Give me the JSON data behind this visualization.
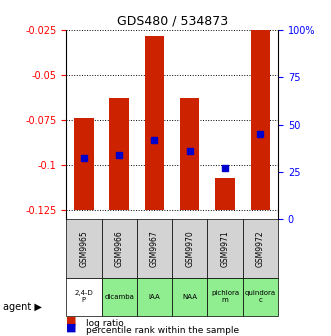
{
  "title": "GDS480 / 534873",
  "samples": [
    "GSM9965",
    "GSM9966",
    "GSM9967",
    "GSM9970",
    "GSM9971",
    "GSM9972"
  ],
  "agents": [
    "2,4-D\nP",
    "dicamba",
    "IAA",
    "NAA",
    "pichlora\nm",
    "quindora\nc"
  ],
  "agent_colors": [
    "#ffffff",
    "#90ee90",
    "#90ee90",
    "#90ee90",
    "#90ee90",
    "#90ee90"
  ],
  "log_ratio_bottoms": [
    -0.125,
    -0.125,
    -0.125,
    -0.125,
    -0.107,
    -0.125
  ],
  "log_ratio_tops": [
    -0.074,
    -0.063,
    -0.028,
    -0.063,
    -0.125,
    -0.025
  ],
  "percentile_ranks": [
    32,
    34,
    42,
    36,
    27,
    45
  ],
  "bar_color": "#cc2200",
  "dot_color": "#0000cc",
  "ylim_left": [
    -0.13,
    -0.025
  ],
  "ylim_right": [
    0,
    100
  ],
  "yticks_left": [
    -0.125,
    -0.1,
    -0.075,
    -0.05,
    -0.025
  ],
  "ytick_labels_left": [
    "-0.125",
    "-0.1",
    "-0.075",
    "-0.05",
    "-0.025"
  ],
  "yticks_right": [
    0,
    25,
    50,
    75,
    100
  ],
  "ytick_labels_right": [
    "0",
    "25",
    "50",
    "75",
    "100%"
  ],
  "bg_color": "#ffffff"
}
